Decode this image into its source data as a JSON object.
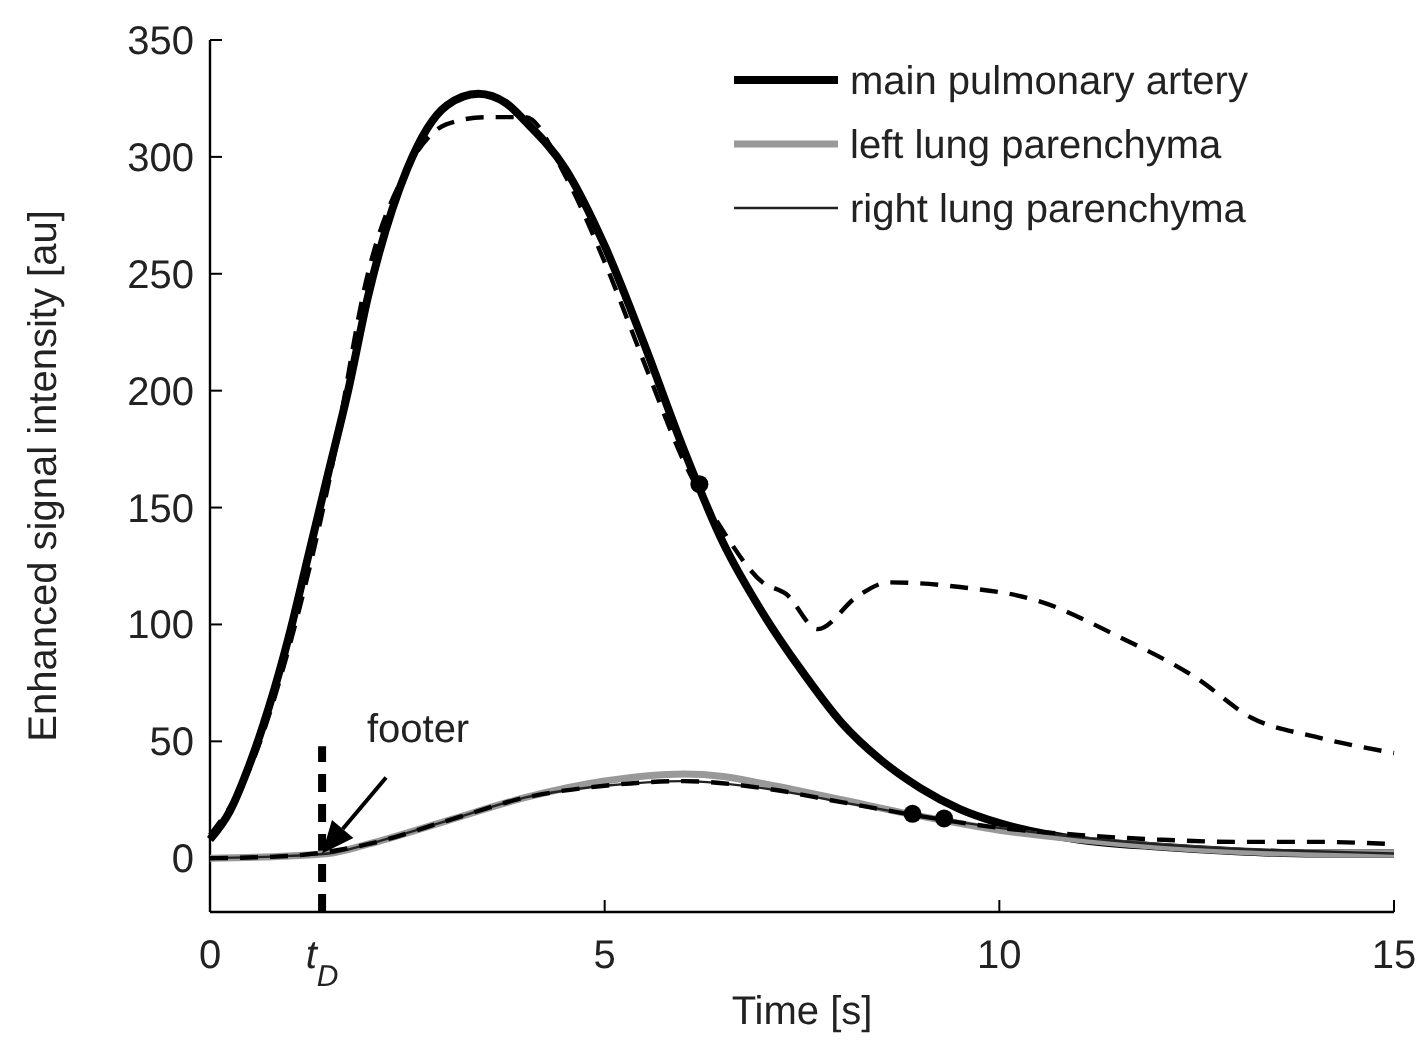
{
  "chart_data": {
    "type": "line",
    "xlabel": "Time [s]",
    "ylabel": "Enhanced signal intensity [au]",
    "xlim": [
      0,
      15
    ],
    "ylim": [
      -23,
      350
    ],
    "xticks": [
      0,
      {
        "value": 1.42,
        "label": "t$_{D}$"
      },
      5,
      10,
      15
    ],
    "yticks": [
      0,
      50,
      100,
      150,
      200,
      250,
      300,
      350
    ],
    "grid": false,
    "legend": "top right",
    "marker": "none",
    "ref_lines": [
      {
        "axis": "x",
        "value": 1.42,
        "line_style": "dashed",
        "color": "#000000"
      }
    ],
    "annotations": [
      {
        "text": "footer",
        "x": 1.42,
        "y": 2
      }
    ],
    "series": [
      {
        "name": "main pulmonary artery",
        "color": "#000000",
        "line_style": "solid",
        "x": [
          0,
          0.25,
          0.5,
          0.75,
          1,
          1.25,
          1.5,
          1.75,
          2,
          2.5,
          3,
          3.4,
          3.75,
          4,
          4.5,
          5,
          5.5,
          6,
          6.5,
          7,
          7.5,
          8,
          8.5,
          9,
          9.5,
          10,
          11,
          12,
          13,
          14,
          15
        ],
        "values": [
          8,
          20,
          40,
          65,
          95,
          130,
          165,
          200,
          240,
          295,
          322,
          327,
          323,
          315,
          295,
          262,
          220,
          175,
          135,
          105,
          80,
          58,
          42,
          30,
          21,
          15,
          8,
          5,
          3,
          2,
          2
        ]
      },
      {
        "name": "left lung parenchyma",
        "color": "#999999",
        "line_style": "solid",
        "x": [
          0,
          1,
          1.5,
          2,
          3,
          4,
          5,
          6,
          6.5,
          7,
          8,
          9,
          10,
          11,
          12,
          13,
          14,
          15
        ],
        "values": [
          0,
          1,
          2,
          6,
          16,
          26,
          33,
          36,
          35,
          32,
          25,
          18,
          12,
          8,
          5,
          3,
          2,
          2
        ]
      },
      {
        "name": "right lung parenchyma",
        "color": "#222222",
        "line_style": "solid",
        "x": [
          0,
          1,
          1.5,
          2,
          3,
          4,
          5,
          6,
          7,
          8,
          9,
          10,
          11,
          12,
          13,
          14,
          15
        ],
        "values": [
          0,
          1,
          2,
          6,
          16,
          26,
          31,
          33,
          30,
          24,
          18,
          13,
          9,
          6,
          4,
          3,
          2
        ]
      },
      {
        "color": "#000000",
        "line_style": "dashed",
        "x": [
          0,
          0.5,
          1,
          1.5,
          2,
          2.5,
          3,
          3.5,
          4,
          4.5,
          5,
          5.5,
          6,
          6.5,
          7,
          7.3,
          7.7,
          8.2,
          8.6,
          9.5,
          10.5,
          11.5,
          12.5,
          13.2,
          14,
          15
        ],
        "values": [
          10,
          38,
          90,
          160,
          250,
          295,
          314,
          317,
          317,
          292,
          255,
          212,
          170,
          140,
          118,
          113,
          98,
          112,
          118,
          116,
          110,
          95,
          77,
          60,
          52,
          45
        ]
      },
      {
        "color": "#000000",
        "line_style": "dashed",
        "x": [
          0,
          1,
          2,
          3,
          4,
          5,
          6,
          7,
          8,
          9,
          10,
          11,
          12,
          13,
          14,
          15
        ],
        "values": [
          0,
          1,
          6,
          16,
          26,
          31,
          33,
          30,
          24,
          18,
          13,
          10,
          8,
          7,
          7,
          6
        ]
      },
      {
        "type": "scatter",
        "color": "#000000",
        "marker": "circle",
        "x": [
          6.2,
          8.9,
          9.3
        ],
        "values": [
          160,
          19,
          17
        ]
      }
    ]
  }
}
